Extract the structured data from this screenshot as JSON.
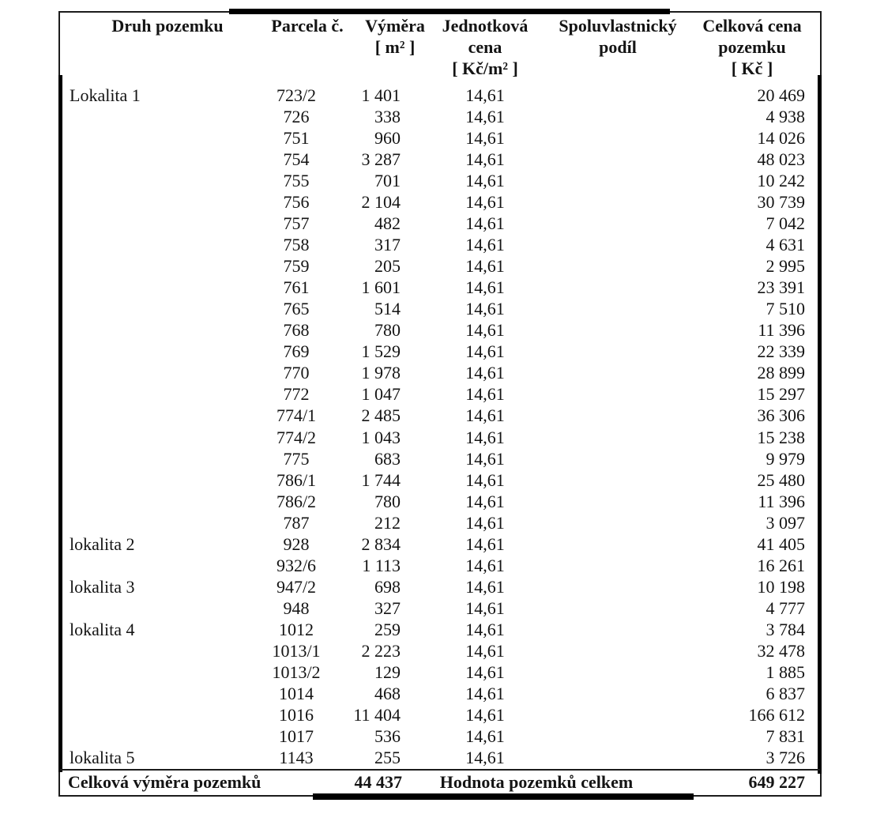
{
  "colors": {
    "background": "#ffffff",
    "text": "#141414",
    "border": "#1c1c1c",
    "thick_border": "#000000"
  },
  "table": {
    "headers": {
      "druh": {
        "l1": "Druh pozemku"
      },
      "parcela": {
        "l1": "Parcela č."
      },
      "vymera": {
        "l1": "Výměra",
        "l2": "[ m² ]"
      },
      "jednotkova": {
        "l1": "Jednotková",
        "l2": "cena",
        "l3": "[ Kč/m² ]"
      },
      "spoluvlastnicky": {
        "l1": "Spoluvlastnický",
        "l2": "podíl"
      },
      "celkova": {
        "l1": "Celková cena",
        "l2": "pozemku",
        "l3": "[ Kč ]"
      }
    },
    "rows": [
      {
        "druh": "Lokalita 1",
        "parcela": "723/2",
        "vymera": "1 401",
        "cena": "14,61",
        "podil": "",
        "celkova": "20 469"
      },
      {
        "druh": "",
        "parcela": "726",
        "vymera": "338",
        "cena": "14,61",
        "podil": "",
        "celkova": "4 938"
      },
      {
        "druh": "",
        "parcela": "751",
        "vymera": "960",
        "cena": "14,61",
        "podil": "",
        "celkova": "14 026"
      },
      {
        "druh": "",
        "parcela": "754",
        "vymera": "3 287",
        "cena": "14,61",
        "podil": "",
        "celkova": "48 023"
      },
      {
        "druh": "",
        "parcela": "755",
        "vymera": "701",
        "cena": "14,61",
        "podil": "",
        "celkova": "10 242"
      },
      {
        "druh": "",
        "parcela": "756",
        "vymera": "2 104",
        "cena": "14,61",
        "podil": "",
        "celkova": "30 739"
      },
      {
        "druh": "",
        "parcela": "757",
        "vymera": "482",
        "cena": "14,61",
        "podil": "",
        "celkova": "7 042"
      },
      {
        "druh": "",
        "parcela": "758",
        "vymera": "317",
        "cena": "14,61",
        "podil": "",
        "celkova": "4 631"
      },
      {
        "druh": "",
        "parcela": "759",
        "vymera": "205",
        "cena": "14,61",
        "podil": "",
        "celkova": "2 995"
      },
      {
        "druh": "",
        "parcela": "761",
        "vymera": "1 601",
        "cena": "14,61",
        "podil": "",
        "celkova": "23 391"
      },
      {
        "druh": "",
        "parcela": "765",
        "vymera": "514",
        "cena": "14,61",
        "podil": "",
        "celkova": "7 510"
      },
      {
        "druh": "",
        "parcela": "768",
        "vymera": "780",
        "cena": "14,61",
        "podil": "",
        "celkova": "11 396"
      },
      {
        "druh": "",
        "parcela": "769",
        "vymera": "1 529",
        "cena": "14,61",
        "podil": "",
        "celkova": "22 339"
      },
      {
        "druh": "",
        "parcela": "770",
        "vymera": "1 978",
        "cena": "14,61",
        "podil": "",
        "celkova": "28 899"
      },
      {
        "druh": "",
        "parcela": "772",
        "vymera": "1 047",
        "cena": "14,61",
        "podil": "",
        "celkova": "15 297"
      },
      {
        "druh": "",
        "parcela": "774/1",
        "vymera": "2 485",
        "cena": "14,61",
        "podil": "",
        "celkova": "36 306"
      },
      {
        "druh": "",
        "parcela": "774/2",
        "vymera": "1 043",
        "cena": "14,61",
        "podil": "",
        "celkova": "15 238"
      },
      {
        "druh": "",
        "parcela": "775",
        "vymera": "683",
        "cena": "14,61",
        "podil": "",
        "celkova": "9 979"
      },
      {
        "druh": "",
        "parcela": "786/1",
        "vymera": "1 744",
        "cena": "14,61",
        "podil": "",
        "celkova": "25 480"
      },
      {
        "druh": "",
        "parcela": "786/2",
        "vymera": "780",
        "cena": "14,61",
        "podil": "",
        "celkova": "11 396"
      },
      {
        "druh": "",
        "parcela": "787",
        "vymera": "212",
        "cena": "14,61",
        "podil": "",
        "celkova": "3 097"
      },
      {
        "druh": "lokalita 2",
        "parcela": "928",
        "vymera": "2 834",
        "cena": "14,61",
        "podil": "",
        "celkova": "41 405"
      },
      {
        "druh": "",
        "parcela": "932/6",
        "vymera": "1 113",
        "cena": "14,61",
        "podil": "",
        "celkova": "16 261"
      },
      {
        "druh": "lokalita 3",
        "parcela": "947/2",
        "vymera": "698",
        "cena": "14,61",
        "podil": "",
        "celkova": "10 198"
      },
      {
        "druh": "",
        "parcela": "948",
        "vymera": "327",
        "cena": "14,61",
        "podil": "",
        "celkova": "4 777"
      },
      {
        "druh": "lokalita 4",
        "parcela": "1012",
        "vymera": "259",
        "cena": "14,61",
        "podil": "",
        "celkova": "3 784"
      },
      {
        "druh": "",
        "parcela": "1013/1",
        "vymera": "2 223",
        "cena": "14,61",
        "podil": "",
        "celkova": "32 478"
      },
      {
        "druh": "",
        "parcela": "1013/2",
        "vymera": "129",
        "cena": "14,61",
        "podil": "",
        "celkova": "1 885"
      },
      {
        "druh": "",
        "parcela": "1014",
        "vymera": "468",
        "cena": "14,61",
        "podil": "",
        "celkova": "6 837"
      },
      {
        "druh": "",
        "parcela": "1016",
        "vymera": "11 404",
        "cena": "14,61",
        "podil": "",
        "celkova": "166 612"
      },
      {
        "druh": "",
        "parcela": "1017",
        "vymera": "536",
        "cena": "14,61",
        "podil": "",
        "celkova": "7 831"
      },
      {
        "druh": "lokalita 5",
        "parcela": "1143",
        "vymera": "255",
        "cena": "14,61",
        "podil": "",
        "celkova": "3 726"
      }
    ],
    "footer": {
      "label_left": "Celková výměra pozemků",
      "total_area": "44 437",
      "label_right": "Hodnota pozemků celkem",
      "total_value": "649 227"
    }
  }
}
